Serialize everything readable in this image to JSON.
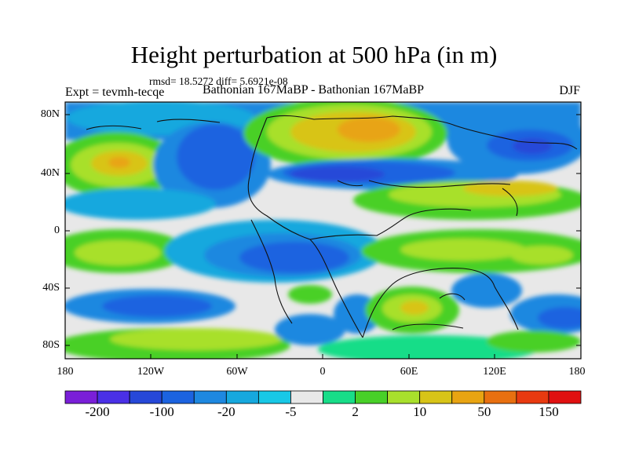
{
  "title": "Height perturbation at 500 hPa (in m)",
  "stats": "rmsd= 18.5272 diff= 5.6921e-08",
  "left_label": "Expt = tevmh-tecqe",
  "center_label": "Bathonian 167MaBP - Bathonian 167MaBP",
  "right_label": "DJF",
  "y_ticks": [
    "80N",
    "40N",
    "0",
    "40S",
    "80S"
  ],
  "x_ticks": [
    "180",
    "120W",
    "60W",
    "0",
    "60E",
    "120E",
    "180"
  ],
  "colorbar": {
    "colors": [
      "#7a1fd8",
      "#4a30e6",
      "#2648d8",
      "#1c63e0",
      "#1e88e0",
      "#16a8de",
      "#18c8e6",
      "#e8e8e8",
      "#18dd88",
      "#48d028",
      "#a8e02c",
      "#d8c418",
      "#e8a412",
      "#e87010",
      "#e83a10",
      "#e01010"
    ],
    "labels": [
      "-200",
      "-100",
      "-20",
      "-5",
      "2",
      "10",
      "50",
      "150"
    ]
  }
}
